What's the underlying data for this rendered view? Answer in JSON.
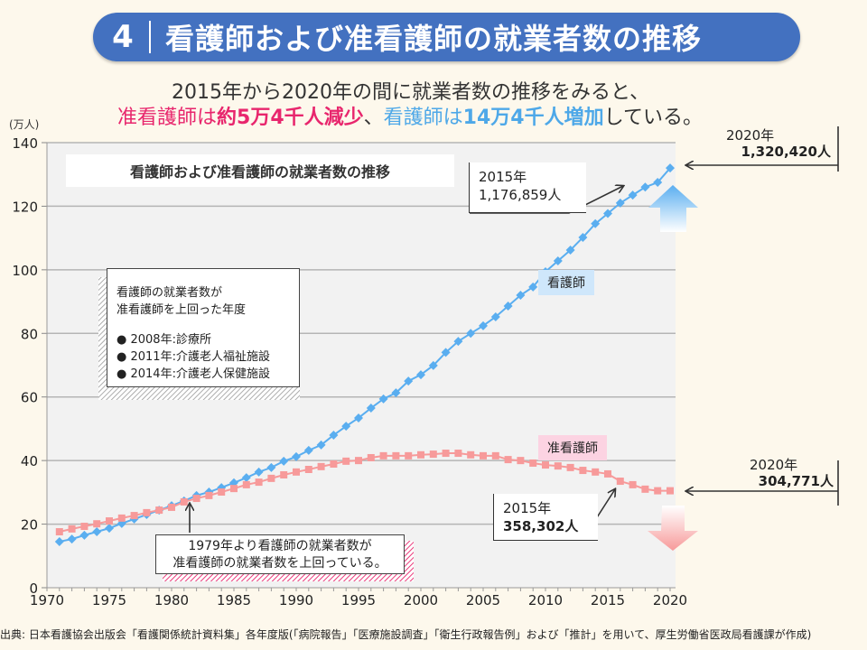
{
  "header": {
    "number": "4",
    "title": "看護師および准看護師の就業者数の推移"
  },
  "lead": {
    "line1": "2015年から2020年の間に就業者数の推移をみると、",
    "line2_parts": [
      {
        "text": "准看護師は",
        "style": "pink"
      },
      {
        "text": "約5万4千人減少",
        "style": "pink"
      },
      {
        "text": "、",
        "style": "plain"
      },
      {
        "text": "看護師は",
        "style": "blue"
      },
      {
        "text": "14万4千人増加",
        "style": "blue"
      },
      {
        "text": "している。",
        "style": "plain"
      }
    ]
  },
  "annotations": {
    "crossover_box": {
      "heading_line1": "看護師の就業者数が",
      "heading_line2": "准看護師を上回った年度",
      "items": [
        "2008年:診療所",
        "2011年:介護老人福祉施設",
        "2014年:介護老人保健施設"
      ]
    },
    "since_1979": {
      "line1": "1979年より看護師の就業者数が",
      "line2": "准看護師の就業者数を上回っている。"
    },
    "nurse_2015": {
      "year": "2015年",
      "value": "1,176,859人"
    },
    "nurse_2020": {
      "year": "2020年",
      "value": "1,320,420人"
    },
    "assistant_2015": {
      "year": "2015年",
      "value": "358,302人"
    },
    "assistant_2020": {
      "year": "2020年",
      "value": "304,771人"
    }
  },
  "footer": "出典: 日本看護協会出版会「看護関係統計資料集」各年度版(「病院報告」「医療施設調査」「衛生行政報告例」および「推計」を用いて、厚生労働省医政局看護課が作成)",
  "colors": {
    "title_bar": "#4371c0",
    "nurse": "#5aaef0",
    "assistant": "#f79a9a",
    "pink_text": "#e8266d",
    "blue_text": "#4ea8e8",
    "plot_bg": "#f2f2f2",
    "page_bg": "#fdf8ec"
  },
  "chart_data": {
    "type": "line",
    "title": "看護師および准看護師の就業者数の推移",
    "xlabel": "",
    "ylabel": "(万人)",
    "xlim": [
      1970,
      2020
    ],
    "ylim": [
      0,
      140
    ],
    "xticks": [
      1970,
      1975,
      1980,
      1985,
      1990,
      1995,
      2000,
      2005,
      2010,
      2015,
      2020
    ],
    "yticks": [
      0,
      20,
      40,
      60,
      80,
      100,
      120,
      140
    ],
    "grid": "horizontal",
    "x": [
      1971,
      1972,
      1973,
      1974,
      1975,
      1976,
      1977,
      1978,
      1979,
      1980,
      1981,
      1982,
      1983,
      1984,
      1985,
      1986,
      1987,
      1988,
      1989,
      1990,
      1991,
      1992,
      1993,
      1994,
      1995,
      1996,
      1997,
      1998,
      1999,
      2000,
      2001,
      2002,
      2003,
      2004,
      2005,
      2006,
      2007,
      2008,
      2009,
      2010,
      2011,
      2012,
      2013,
      2014,
      2015,
      2016,
      2017,
      2018,
      2019,
      2020
    ],
    "series": [
      {
        "name": "看護師",
        "marker": "diamond",
        "values": [
          14.5,
          15.3,
          16.5,
          17.6,
          18.7,
          20.2,
          21.6,
          23.0,
          24.4,
          25.8,
          27.3,
          29.0,
          30.1,
          31.5,
          33.0,
          34.6,
          36.4,
          37.8,
          39.8,
          41.2,
          43.2,
          44.9,
          48.0,
          50.8,
          53.4,
          56.5,
          59.4,
          61.3,
          65.0,
          67.0,
          69.9,
          74.0,
          77.5,
          80.0,
          82.4,
          85.2,
          88.6,
          92.0,
          94.6,
          99.4,
          102.8,
          106.2,
          110.2,
          114.5,
          117.7,
          121.0,
          123.5,
          126.0,
          127.5,
          132.0
        ]
      },
      {
        "name": "准看護師",
        "marker": "square",
        "values": [
          17.6,
          18.5,
          19.3,
          20.1,
          21.0,
          21.9,
          22.7,
          23.6,
          24.4,
          25.3,
          27.0,
          28.1,
          29.0,
          30.1,
          31.2,
          32.4,
          33.2,
          34.4,
          35.5,
          36.4,
          37.2,
          38.1,
          38.9,
          39.8,
          40.0,
          40.9,
          41.5,
          41.5,
          41.5,
          41.8,
          42.0,
          42.3,
          42.3,
          41.8,
          41.5,
          41.5,
          40.3,
          40.0,
          39.2,
          38.6,
          38.3,
          37.8,
          36.9,
          36.4,
          35.8,
          33.5,
          32.4,
          31.0,
          30.5,
          30.5
        ]
      }
    ],
    "legend": "inline-labels"
  }
}
